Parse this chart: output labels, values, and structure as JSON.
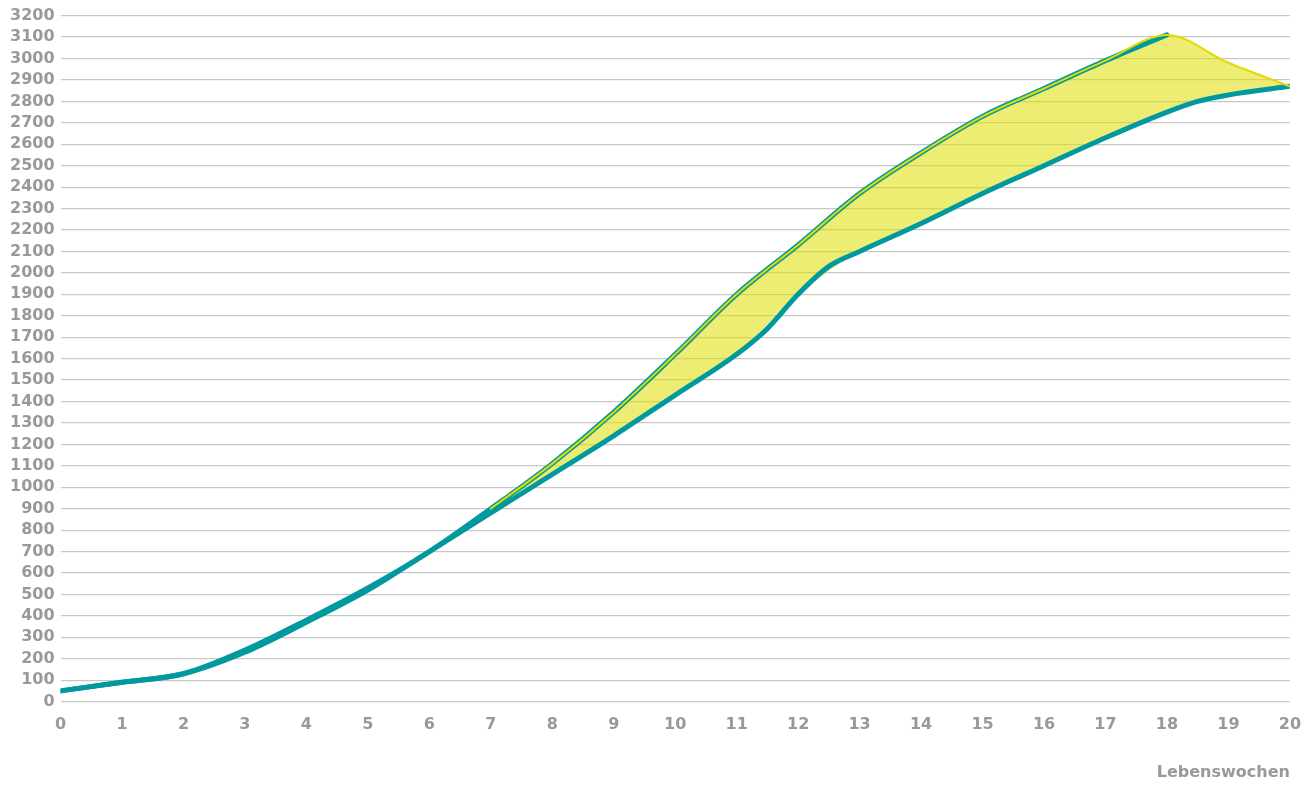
{
  "chart_data": {
    "type": "line",
    "xlabel": "Lebenswochen",
    "xlim": [
      0,
      20
    ],
    "xticks": [
      0,
      1,
      2,
      3,
      4,
      5,
      6,
      7,
      8,
      9,
      10,
      11,
      12,
      13,
      14,
      15,
      16,
      17,
      18,
      19,
      20
    ],
    "ylim": [
      0,
      3200
    ],
    "yticks": [
      0,
      100,
      200,
      300,
      400,
      500,
      600,
      700,
      800,
      900,
      1000,
      1100,
      1200,
      1300,
      1400,
      1500,
      1600,
      1700,
      1800,
      1900,
      2000,
      2100,
      2200,
      2300,
      2400,
      2500,
      2600,
      2700,
      2800,
      2900,
      3000,
      3100,
      3200
    ],
    "grid": "y",
    "legend": false,
    "marker": "none",
    "line_style": "solid",
    "series": [
      {
        "color": "#dedc00",
        "x": [
          7,
          8,
          9,
          10,
          11,
          12,
          13,
          14,
          15,
          16,
          17,
          18,
          19,
          20
        ],
        "values": [
          900,
          1110,
          1350,
          1620,
          1900,
          2130,
          2370,
          2560,
          2730,
          2860,
          2990,
          3110,
          2980,
          2870
        ],
        "lower": [
          880,
          1060,
          1240,
          1430,
          1620,
          1900,
          2100,
          2230,
          2370,
          2500,
          2630,
          2750,
          2830,
          2870
        ],
        "upper": [
          900,
          1110,
          1350,
          1620,
          1900,
          2130,
          2370,
          2560,
          2730,
          2860,
          2990,
          3110,
          2980,
          2870
        ]
      },
      {
        "color": "#00999f",
        "x": [
          0,
          1,
          2,
          3,
          4,
          5,
          6,
          7,
          8,
          9,
          10,
          11,
          12,
          13,
          14,
          15,
          16,
          17,
          18
        ],
        "values": [
          50,
          90,
          130,
          240,
          380,
          530,
          700,
          900,
          1110,
          1350,
          1620,
          1900,
          2130,
          2370,
          2560,
          2730,
          2860,
          2990,
          3110
        ]
      },
      {
        "color": "#00999f",
        "x": [
          0,
          1,
          2,
          3,
          4,
          5,
          6,
          7,
          8,
          9,
          10,
          11,
          11.5,
          12,
          12.5,
          13,
          14,
          15,
          16,
          17,
          18,
          18.5,
          19,
          20
        ],
        "values": [
          50,
          90,
          130,
          230,
          370,
          520,
          700,
          880,
          1060,
          1240,
          1430,
          1620,
          1740,
          1900,
          2030,
          2100,
          2230,
          2370,
          2500,
          2630,
          2750,
          2800,
          2830,
          2870
        ]
      }
    ]
  }
}
